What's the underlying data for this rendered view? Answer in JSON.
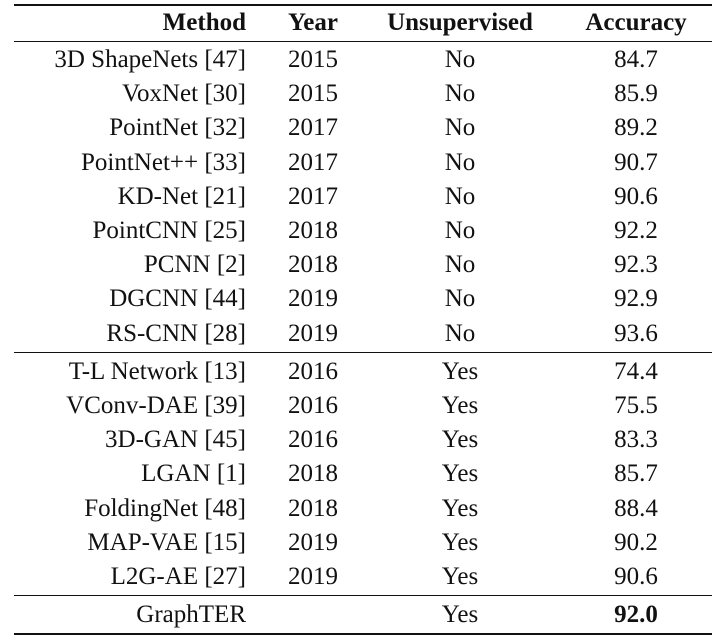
{
  "table": {
    "header": [
      "Method",
      "Year",
      "Unsupervised",
      "Accuracy"
    ],
    "groups": [
      [
        [
          "3D ShapeNets [47]",
          "2015",
          "No",
          "84.7"
        ],
        [
          "VoxNet [30]",
          "2015",
          "No",
          "85.9"
        ],
        [
          "PointNet [32]",
          "2017",
          "No",
          "89.2"
        ],
        [
          "PointNet++ [33]",
          "2017",
          "No",
          "90.7"
        ],
        [
          "KD-Net [21]",
          "2017",
          "No",
          "90.6"
        ],
        [
          "PointCNN [25]",
          "2018",
          "No",
          "92.2"
        ],
        [
          "PCNN [2]",
          "2018",
          "No",
          "92.3"
        ],
        [
          "DGCNN [44]",
          "2019",
          "No",
          "92.9"
        ],
        [
          "RS-CNN [28]",
          "2019",
          "No",
          "93.6"
        ]
      ],
      [
        [
          "T-L Network [13]",
          "2016",
          "Yes",
          "74.4"
        ],
        [
          "VConv-DAE [39]",
          "2016",
          "Yes",
          "75.5"
        ],
        [
          "3D-GAN [45]",
          "2016",
          "Yes",
          "83.3"
        ],
        [
          "LGAN [1]",
          "2018",
          "Yes",
          "85.7"
        ],
        [
          "FoldingNet [48]",
          "2018",
          "Yes",
          "88.4"
        ],
        [
          "MAP-VAE [15]",
          "2019",
          "Yes",
          "90.2"
        ],
        [
          "L2G-AE [27]",
          "2019",
          "Yes",
          "90.6"
        ]
      ],
      [
        [
          "GraphTER",
          null,
          "Yes",
          "92.0"
        ]
      ]
    ]
  }
}
